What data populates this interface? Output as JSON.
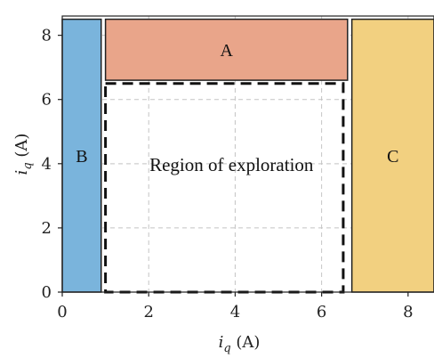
{
  "chart_data": {
    "type": "region",
    "xlabel": "i_q (A)",
    "ylabel": "i_q (A)",
    "xlim": [
      0,
      8.6
    ],
    "ylim": [
      0,
      8.6
    ],
    "xticks": [
      0,
      2,
      4,
      6,
      8
    ],
    "yticks": [
      0,
      2,
      4,
      6,
      8
    ],
    "grid": true,
    "regions": [
      {
        "label": "A",
        "x": [
          1.0,
          6.6
        ],
        "y": [
          6.6,
          8.5
        ],
        "color": "#e9a58a"
      },
      {
        "label": "B",
        "x": [
          0.0,
          0.9
        ],
        "y": [
          0.0,
          8.5
        ],
        "color": "#7ab4dc"
      },
      {
        "label": "C",
        "x": [
          6.7,
          8.6
        ],
        "y": [
          0.0,
          8.5
        ],
        "color": "#f2d080"
      }
    ],
    "exploration": {
      "label": "Region of exploration",
      "x": [
        1.0,
        6.5
      ],
      "y": [
        0.0,
        6.5
      ]
    }
  }
}
